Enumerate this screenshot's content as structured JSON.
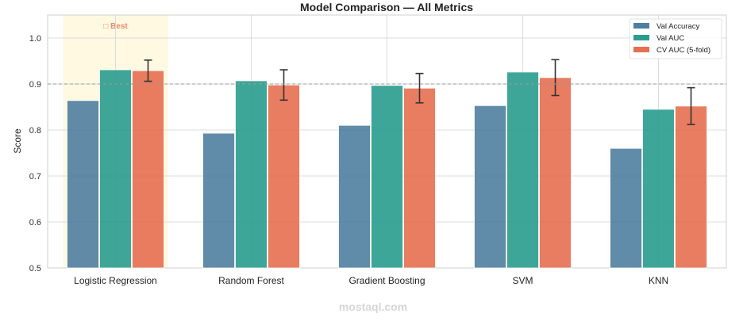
{
  "chart_data": {
    "type": "bar",
    "title": "Model Comparison — All Metrics",
    "xlabel": "",
    "ylabel": "Score",
    "ylim": [
      0.5,
      1.05
    ],
    "yticks": [
      "0.5",
      "0.6",
      "0.7",
      "0.8",
      "0.9",
      "1.0"
    ],
    "grid": true,
    "legend_placement": "top-right",
    "categories": [
      "Logistic Regression",
      "Random Forest",
      "Gradient Boosting",
      "SVM",
      "KNN"
    ],
    "series": [
      {
        "name": "Val Accuracy",
        "color": "#4f7fa0",
        "values": [
          0.864,
          0.793,
          0.81,
          0.853,
          0.76
        ]
      },
      {
        "name": "Val AUC",
        "color": "#2a9d8f",
        "values": [
          0.931,
          0.907,
          0.897,
          0.926,
          0.845
        ]
      },
      {
        "name": "CV AUC (5-fold)",
        "color": "#e76f51",
        "values": [
          0.929,
          0.898,
          0.891,
          0.914,
          0.852
        ],
        "errors": [
          0.023,
          0.033,
          0.032,
          0.039,
          0.04
        ]
      }
    ],
    "reference_line": 0.9,
    "highlight": {
      "category": "Logistic Regression",
      "label": "□ Best",
      "color": "#e76f51"
    }
  },
  "watermark": "mostaql.com"
}
